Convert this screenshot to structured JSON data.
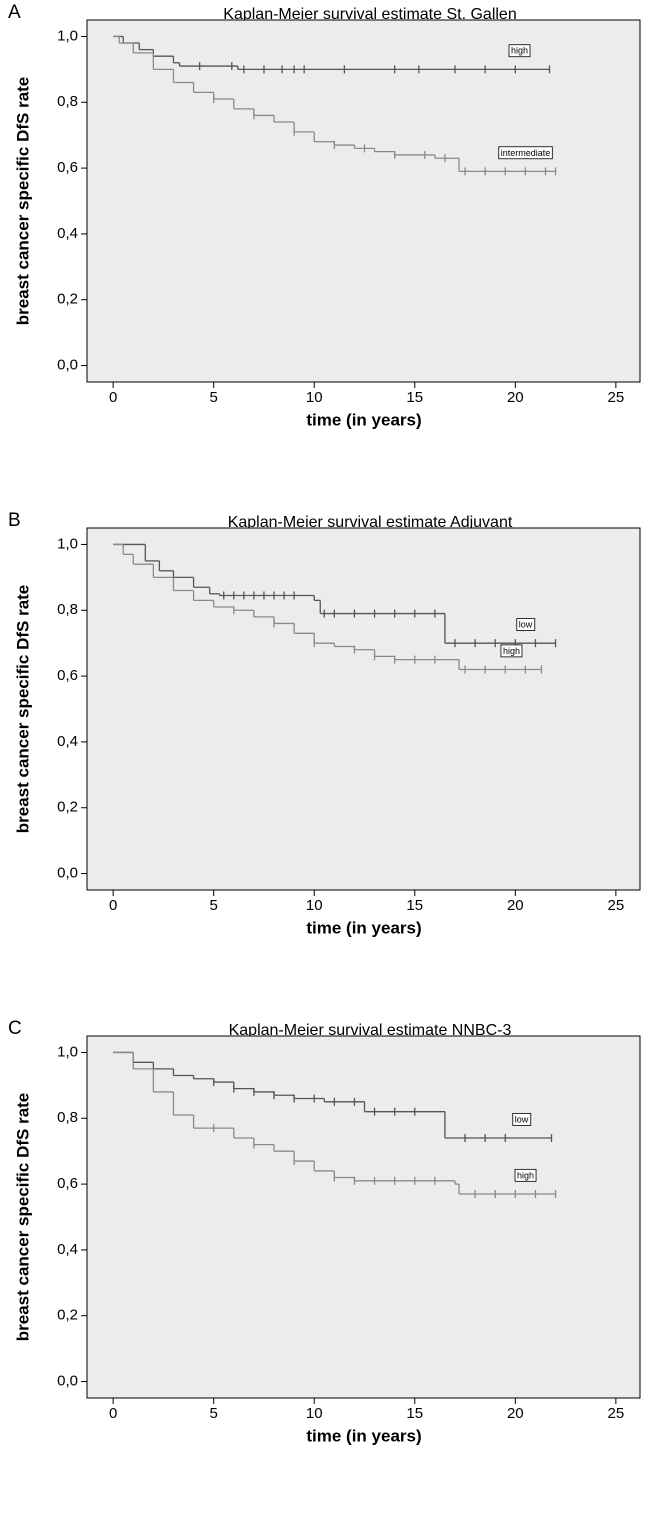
{
  "chart_data": [
    {
      "type": "step",
      "panel": "A",
      "title": "Kaplan-Meier survival estimate St. Gallen",
      "x_label": "time (in years)",
      "y_label": "breast cancer specific DfS rate",
      "xlim": [
        -1.3,
        26.2
      ],
      "ylim": [
        -0.05,
        1.05
      ],
      "xticks": [
        0,
        5,
        10,
        15,
        20,
        25
      ],
      "yticks": [
        {
          "value": 0,
          "label": "0,0"
        },
        {
          "value": 0.2,
          "label": "0,2"
        },
        {
          "value": 0.4,
          "label": "0,4"
        },
        {
          "value": 0.6,
          "label": "0,6"
        },
        {
          "value": 0.8,
          "label": "0,8"
        },
        {
          "value": 1.0,
          "label": "1,0"
        }
      ],
      "series": [
        {
          "name": "high",
          "color": "#555555",
          "x": [
            0,
            0.5,
            1.3,
            2,
            3,
            3.3,
            6.2,
            21.7
          ],
          "values": [
            1.0,
            0.98,
            0.96,
            0.94,
            0.92,
            0.91,
            0.9,
            0.9
          ],
          "censored": [
            4.3,
            5.9,
            6.5,
            7.5,
            8.4,
            9,
            9.5,
            11.5,
            14,
            15.2,
            17,
            18.5,
            20,
            21.7
          ]
        },
        {
          "name": "intermediate",
          "color": "#8a8a8a",
          "x": [
            0,
            0.3,
            1,
            2,
            3,
            4,
            5,
            6,
            7,
            8,
            9,
            10,
            11,
            12,
            13,
            14,
            16,
            17.2,
            22
          ],
          "values": [
            1.0,
            0.98,
            0.95,
            0.9,
            0.86,
            0.83,
            0.81,
            0.78,
            0.76,
            0.74,
            0.71,
            0.68,
            0.67,
            0.66,
            0.65,
            0.64,
            0.63,
            0.59,
            0.59
          ],
          "censored": [
            5,
            7,
            9,
            11,
            12.5,
            14,
            15.5,
            16.5,
            17.5,
            18.5,
            19.5,
            20.5,
            21.5,
            22
          ]
        }
      ]
    },
    {
      "type": "step",
      "panel": "B",
      "title": "Kaplan-Meier survival estimate Adjuvant",
      "x_label": "time (in years)",
      "y_label": "breast cancer specific DfS rate",
      "xlim": [
        -1.3,
        26.2
      ],
      "ylim": [
        -0.05,
        1.05
      ],
      "xticks": [
        0,
        5,
        10,
        15,
        20,
        25
      ],
      "yticks": [
        {
          "value": 0,
          "label": "0,0"
        },
        {
          "value": 0.2,
          "label": "0,2"
        },
        {
          "value": 0.4,
          "label": "0,4"
        },
        {
          "value": 0.6,
          "label": "0,6"
        },
        {
          "value": 0.8,
          "label": "0,8"
        },
        {
          "value": 1.0,
          "label": "1,0"
        }
      ],
      "series": [
        {
          "name": "low",
          "color": "#555555",
          "x": [
            0,
            1.6,
            2.3,
            3,
            4,
            4.8,
            5.3,
            10,
            10.3,
            16.5,
            22
          ],
          "values": [
            1.0,
            0.95,
            0.92,
            0.9,
            0.87,
            0.85,
            0.845,
            0.83,
            0.79,
            0.7,
            0.7
          ],
          "censored": [
            5.5,
            6,
            6.5,
            7,
            7.5,
            8,
            8.5,
            9,
            10.5,
            11,
            12,
            13,
            14,
            15,
            16,
            17,
            18,
            19,
            20,
            21,
            22
          ]
        },
        {
          "name": "high",
          "color": "#8a8a8a",
          "x": [
            0,
            0.5,
            1,
            2,
            3,
            4,
            5,
            6,
            7,
            8,
            9,
            10,
            11,
            12,
            13,
            14,
            17,
            17.2,
            21.3
          ],
          "values": [
            1.0,
            0.97,
            0.94,
            0.9,
            0.86,
            0.83,
            0.81,
            0.8,
            0.78,
            0.76,
            0.73,
            0.7,
            0.69,
            0.68,
            0.66,
            0.65,
            0.65,
            0.62,
            0.62
          ],
          "censored": [
            6,
            8,
            10,
            12,
            13,
            14,
            15,
            16,
            17.5,
            18.5,
            19.5,
            20.5,
            21.3
          ]
        }
      ]
    },
    {
      "type": "step",
      "panel": "C",
      "title": "Kaplan-Meier survival estimate NNBC-3",
      "x_label": "time (in years)",
      "y_label": "breast cancer specific DfS rate",
      "xlim": [
        -1.3,
        26.2
      ],
      "ylim": [
        -0.05,
        1.05
      ],
      "xticks": [
        0,
        5,
        10,
        15,
        20,
        25
      ],
      "yticks": [
        {
          "value": 0,
          "label": "0,0"
        },
        {
          "value": 0.2,
          "label": "0,2"
        },
        {
          "value": 0.4,
          "label": "0,4"
        },
        {
          "value": 0.6,
          "label": "0,6"
        },
        {
          "value": 0.8,
          "label": "0,8"
        },
        {
          "value": 1.0,
          "label": "1,0"
        }
      ],
      "series": [
        {
          "name": "low",
          "color": "#555555",
          "x": [
            0,
            1,
            2,
            3,
            4,
            5,
            6,
            7,
            8,
            9,
            10.5,
            12.5,
            16.5,
            21.8
          ],
          "values": [
            1.0,
            0.97,
            0.95,
            0.93,
            0.92,
            0.91,
            0.89,
            0.88,
            0.87,
            0.86,
            0.85,
            0.82,
            0.74,
            0.74
          ],
          "censored": [
            5,
            6,
            7,
            8,
            9,
            10,
            11,
            12,
            13,
            14,
            15,
            17.5,
            18.5,
            19.5,
            21.8
          ]
        },
        {
          "name": "high",
          "color": "#8a8a8a",
          "x": [
            0,
            1,
            2,
            3,
            4,
            5,
            6,
            7,
            8,
            9,
            10,
            11,
            12,
            15,
            17,
            17.2,
            22
          ],
          "values": [
            1.0,
            0.95,
            0.88,
            0.81,
            0.77,
            0.77,
            0.74,
            0.72,
            0.7,
            0.67,
            0.64,
            0.62,
            0.61,
            0.61,
            0.6,
            0.57,
            0.57
          ],
          "censored": [
            5,
            7,
            9,
            11,
            12,
            13,
            14,
            15,
            16,
            18,
            19,
            20,
            21,
            22
          ]
        }
      ]
    }
  ]
}
